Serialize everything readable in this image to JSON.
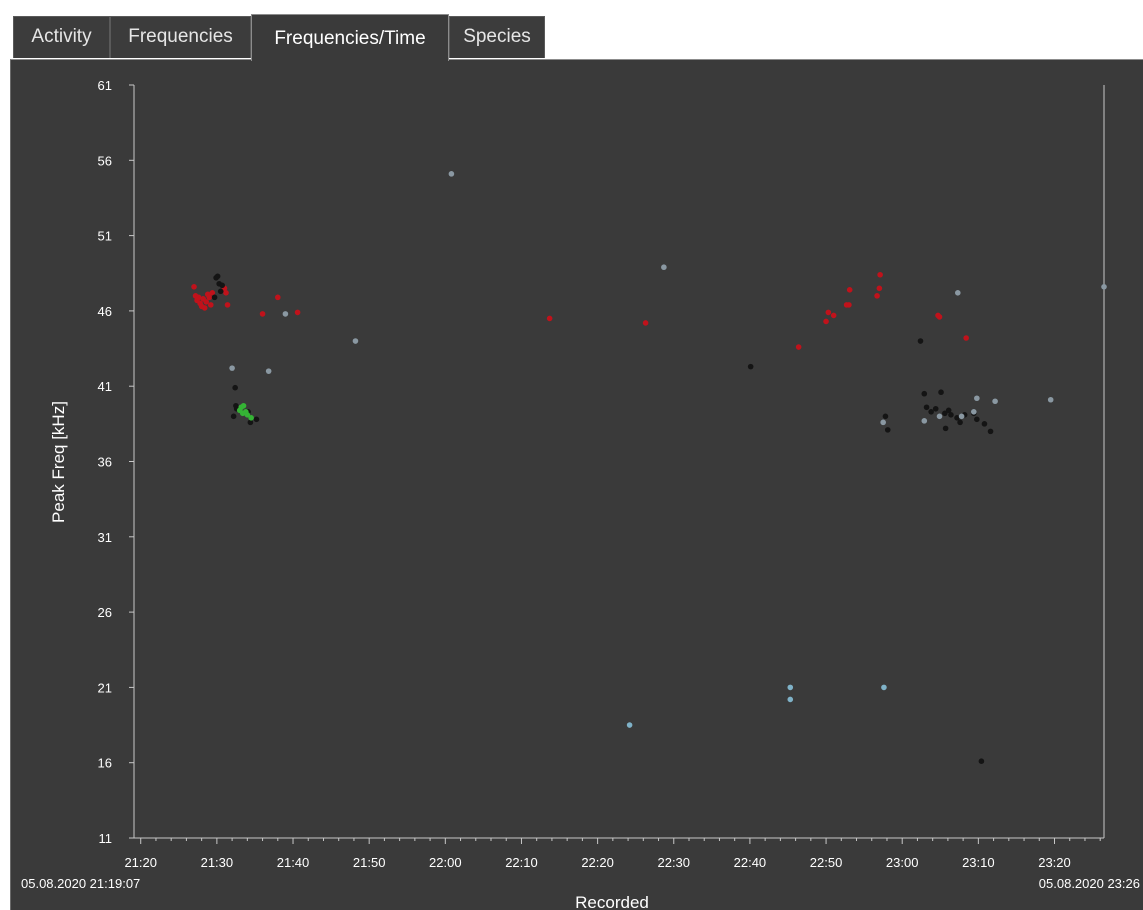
{
  "tabs": [
    {
      "label": "Activity",
      "active": false
    },
    {
      "label": "Frequencies",
      "active": false
    },
    {
      "label": "Frequencies/Time",
      "active": true
    },
    {
      "label": "Species",
      "active": false
    }
  ],
  "chart_data": {
    "type": "scatter",
    "xlabel": "Recorded",
    "ylabel": "Peak Freq [kHz]",
    "ylim": [
      11,
      61
    ],
    "yticks": [
      61,
      56,
      51,
      46,
      41,
      36,
      31,
      26,
      21,
      16,
      11
    ],
    "xlim": [
      "21:19:07",
      "23:26:30"
    ],
    "xticks": [
      "21:20",
      "21:30",
      "21:40",
      "21:50",
      "22:00",
      "22:10",
      "22:20",
      "22:30",
      "22:40",
      "22:50",
      "23:00",
      "23:10",
      "23:20"
    ],
    "start_label": "05.08.2020 21:19:07",
    "end_label": "05.08.2020 23:26",
    "grid": false,
    "legend": "none",
    "colors": {
      "background": "#3a3a3a",
      "axis": "#c8c8c8",
      "red": "#c0121b",
      "black": "#141414",
      "green": "#35b435",
      "gray": "#8a98a2",
      "lightblue": "#7fb2c8"
    },
    "series": [
      {
        "color": "#c0121b",
        "points": [
          [
            "21:27:00",
            47.6
          ],
          [
            "21:27:12",
            47.0
          ],
          [
            "21:27:24",
            46.7
          ],
          [
            "21:27:36",
            46.9
          ],
          [
            "21:27:48",
            46.5
          ],
          [
            "21:28:00",
            46.3
          ],
          [
            "21:28:12",
            46.8
          ],
          [
            "21:28:24",
            46.2
          ],
          [
            "21:28:36",
            46.6
          ],
          [
            "21:28:48",
            47.1
          ],
          [
            "21:29:00",
            46.9
          ],
          [
            "21:29:12",
            46.4
          ],
          [
            "21:29:24",
            47.2
          ],
          [
            "21:31:00",
            47.5
          ],
          [
            "21:31:12",
            47.2
          ],
          [
            "21:31:24",
            46.4
          ],
          [
            "21:36:00",
            45.8
          ],
          [
            "21:38:00",
            46.9
          ],
          [
            "21:40:36",
            45.9
          ],
          [
            "22:13:42",
            45.5
          ],
          [
            "22:26:18",
            45.2
          ],
          [
            "22:46:24",
            43.6
          ],
          [
            "22:50:00",
            45.3
          ],
          [
            "22:50:18",
            45.9
          ],
          [
            "22:51:00",
            45.7
          ],
          [
            "22:52:42",
            46.4
          ],
          [
            "22:53:00",
            46.4
          ],
          [
            "22:53:06",
            47.4
          ],
          [
            "22:56:42",
            47.0
          ],
          [
            "22:57:00",
            47.5
          ],
          [
            "22:57:06",
            48.4
          ],
          [
            "23:04:42",
            45.7
          ],
          [
            "23:04:54",
            45.6
          ],
          [
            "23:08:24",
            44.2
          ]
        ]
      },
      {
        "color": "#141414",
        "points": [
          [
            "21:29:42",
            46.9
          ],
          [
            "21:29:54",
            48.2
          ],
          [
            "21:30:06",
            48.3
          ],
          [
            "21:30:18",
            47.8
          ],
          [
            "21:30:30",
            47.3
          ],
          [
            "21:30:42",
            47.7
          ],
          [
            "21:32:24",
            40.9
          ],
          [
            "21:32:30",
            39.7
          ],
          [
            "21:32:36",
            39.5
          ],
          [
            "21:32:12",
            39.0
          ],
          [
            "21:34:06",
            39.3
          ],
          [
            "21:34:24",
            38.6
          ],
          [
            "21:35:12",
            38.8
          ],
          [
            "22:40:06",
            42.3
          ],
          [
            "23:02:24",
            44.0
          ],
          [
            "22:57:48",
            39.0
          ],
          [
            "22:58:06",
            38.1
          ],
          [
            "23:02:54",
            40.5
          ],
          [
            "23:03:12",
            39.6
          ],
          [
            "23:03:48",
            39.3
          ],
          [
            "23:04:24",
            39.5
          ],
          [
            "23:05:06",
            40.6
          ],
          [
            "23:05:36",
            39.2
          ],
          [
            "23:05:42",
            38.2
          ],
          [
            "23:06:06",
            39.4
          ],
          [
            "23:06:24",
            39.1
          ],
          [
            "23:07:12",
            38.9
          ],
          [
            "23:07:36",
            38.6
          ],
          [
            "23:08:12",
            39.1
          ],
          [
            "23:09:24",
            39.2
          ],
          [
            "23:09:48",
            38.8
          ],
          [
            "23:10:48",
            38.5
          ],
          [
            "23:11:36",
            38.0
          ],
          [
            "23:10:24",
            16.1
          ]
        ]
      },
      {
        "color": "#35b435",
        "points": [
          [
            "21:33:00",
            39.4
          ],
          [
            "21:33:12",
            39.6
          ],
          [
            "21:33:30",
            39.7
          ],
          [
            "21:33:48",
            39.3
          ],
          [
            "21:34:00",
            39.1
          ],
          [
            "21:34:30",
            38.9
          ],
          [
            "21:33:24",
            39.2
          ]
        ]
      },
      {
        "color": "#8a98a2",
        "points": [
          [
            "21:32:00",
            42.2
          ],
          [
            "21:36:48",
            42.0
          ],
          [
            "21:39:00",
            45.8
          ],
          [
            "21:48:12",
            44.0
          ],
          [
            "22:00:48",
            55.1
          ],
          [
            "22:28:42",
            48.9
          ],
          [
            "22:57:30",
            38.6
          ],
          [
            "23:02:54",
            38.7
          ],
          [
            "23:04:54",
            39.0
          ],
          [
            "23:07:18",
            47.2
          ],
          [
            "23:07:48",
            39.0
          ],
          [
            "23:09:24",
            39.3
          ],
          [
            "23:09:48",
            40.2
          ],
          [
            "23:12:12",
            40.0
          ],
          [
            "23:19:30",
            40.1
          ],
          [
            "23:26:30",
            47.6
          ]
        ]
      },
      {
        "color": "#7fb2c8",
        "points": [
          [
            "22:24:12",
            18.5
          ],
          [
            "22:45:18",
            21.0
          ],
          [
            "22:45:18",
            20.2
          ],
          [
            "22:57:36",
            21.0
          ]
        ]
      }
    ]
  }
}
